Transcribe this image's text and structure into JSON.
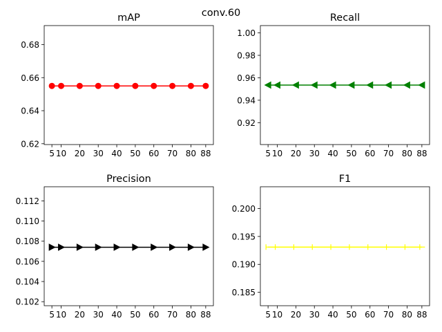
{
  "figure": {
    "suptitle": "conv.60"
  },
  "chart_data": [
    {
      "type": "line",
      "title": "mAP",
      "x": [
        5,
        10,
        20,
        30,
        40,
        50,
        60,
        70,
        80,
        88
      ],
      "xticks": [
        5,
        10,
        20,
        30,
        40,
        50,
        60,
        70,
        80,
        88
      ],
      "xlabels": [
        "5",
        "10",
        "20",
        "30",
        "40",
        "50",
        "60",
        "70",
        "80",
        "88"
      ],
      "xlim": [
        0.85,
        92.15
      ],
      "series": [
        {
          "values": [
            0.655,
            0.655,
            0.655,
            0.655,
            0.655,
            0.655,
            0.655,
            0.655,
            0.655,
            0.655
          ],
          "color": "#ff0000",
          "marker": "circle"
        }
      ],
      "ylim": [
        0.6195,
        0.6915
      ],
      "yticks": [
        0.62,
        0.64,
        0.66,
        0.68
      ],
      "ylabels": [
        "0.62",
        "0.64",
        "0.66",
        "0.68"
      ]
    },
    {
      "type": "line",
      "title": "Recall",
      "x": [
        5,
        10,
        20,
        30,
        40,
        50,
        60,
        70,
        80,
        88
      ],
      "xticks": [
        5,
        10,
        20,
        30,
        40,
        50,
        60,
        70,
        80,
        88
      ],
      "xlabels": [
        "5",
        "10",
        "20",
        "30",
        "40",
        "50",
        "60",
        "70",
        "80",
        "88"
      ],
      "xlim": [
        0.85,
        92.15
      ],
      "series": [
        {
          "values": [
            0.9535,
            0.9535,
            0.9535,
            0.9535,
            0.9535,
            0.9535,
            0.9535,
            0.9535,
            0.9535,
            0.9535
          ],
          "color": "#008000",
          "marker": "triangle-left"
        }
      ],
      "ylim": [
        0.9005,
        1.0065
      ],
      "yticks": [
        0.92,
        0.94,
        0.96,
        0.98,
        1.0
      ],
      "ylabels": [
        "0.92",
        "0.94",
        "0.96",
        "0.98",
        "1.00"
      ]
    },
    {
      "type": "line",
      "title": "Precision",
      "x": [
        5,
        10,
        20,
        30,
        40,
        50,
        60,
        70,
        80,
        88
      ],
      "xticks": [
        5,
        10,
        20,
        30,
        40,
        50,
        60,
        70,
        80,
        88
      ],
      "xlabels": [
        "5",
        "10",
        "20",
        "30",
        "40",
        "50",
        "60",
        "70",
        "80",
        "88"
      ],
      "xlim": [
        0.85,
        92.15
      ],
      "series": [
        {
          "values": [
            0.1074,
            0.1074,
            0.1074,
            0.1074,
            0.1074,
            0.1074,
            0.1074,
            0.1074,
            0.1074,
            0.1074
          ],
          "color": "#000000",
          "marker": "triangle-right"
        }
      ],
      "ylim": [
        0.1016,
        0.1134
      ],
      "yticks": [
        0.102,
        0.104,
        0.106,
        0.108,
        0.11,
        0.112
      ],
      "ylabels": [
        "0.102",
        "0.104",
        "0.106",
        "0.108",
        "0.110",
        "0.112"
      ]
    },
    {
      "type": "line",
      "title": "F1",
      "x": [
        5,
        10,
        20,
        30,
        40,
        50,
        60,
        70,
        80,
        88
      ],
      "xticks": [
        5,
        10,
        20,
        30,
        40,
        50,
        60,
        70,
        80,
        88
      ],
      "xlabels": [
        "5",
        "10",
        "20",
        "30",
        "40",
        "50",
        "60",
        "70",
        "80",
        "88"
      ],
      "xlim": [
        0.85,
        92.15
      ],
      "series": [
        {
          "values": [
            0.1931,
            0.1931,
            0.1931,
            0.1931,
            0.1931,
            0.1931,
            0.1931,
            0.1931,
            0.1931,
            0.1931
          ],
          "color": "#ffff00",
          "marker": "tri-right"
        }
      ],
      "ylim": [
        0.1826,
        0.2039
      ],
      "yticks": [
        0.185,
        0.19,
        0.195,
        0.2
      ],
      "ylabels": [
        "0.185",
        "0.190",
        "0.195",
        "0.200"
      ]
    }
  ]
}
